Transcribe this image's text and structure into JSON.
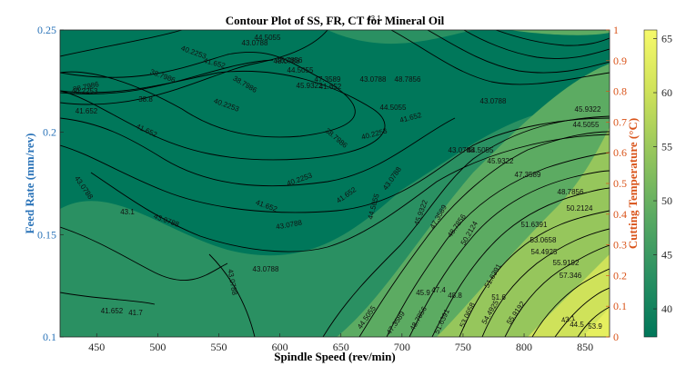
{
  "chart_data": {
    "type": "contour",
    "title": "Contour Plot of SS, FR, CT for Mineral Oil",
    "xlabel": "Spindle Speed (rev/min)",
    "ylabel": "Feed Rate (mm/rev)",
    "y2label": "Cutting Temperature (°C)",
    "xlim": [
      420,
      870
    ],
    "ylim": [
      0.1,
      0.25
    ],
    "y2lim": [
      0,
      1
    ],
    "x_ticks": [
      "450",
      "500",
      "550",
      "600",
      "650",
      "700",
      "750",
      "800",
      "850"
    ],
    "y_ticks": [
      "0.1",
      "0.15",
      "0.2",
      "0.25"
    ],
    "y2_ticks": [
      "0",
      "0.1",
      "0.2",
      "0.3",
      "0.4",
      "0.5",
      "0.6",
      "0.7",
      "0.8",
      "0.9",
      "1"
    ],
    "colorbar": {
      "range": [
        37.4,
        65.8
      ],
      "ticks": [
        "40",
        "45",
        "50",
        "55",
        "60",
        "65"
      ],
      "colormap": [
        "#00775a",
        "#2a9062",
        "#5cab62",
        "#96c65c",
        "#cfe25a",
        "#f6f96a"
      ]
    },
    "contour_levels": [
      "38.7986",
      "40.2253",
      "41.652",
      "43.0788",
      "44.5055",
      "45.9322",
      "47.3589",
      "48.7856",
      "50.2124",
      "51.6391",
      "53.0658",
      "54.4925",
      "55.9192",
      "57.346"
    ],
    "annotations": [
      "41.652",
      "41.7",
      "43.1",
      "38.8",
      "43.1",
      "45.9",
      "47.4",
      "48.8",
      "51.6",
      "43.1",
      "44.5",
      "53.9"
    ]
  },
  "colors": {
    "left_axis": "#2a73b8",
    "right_axis": "#d95319",
    "line": "#000000"
  }
}
